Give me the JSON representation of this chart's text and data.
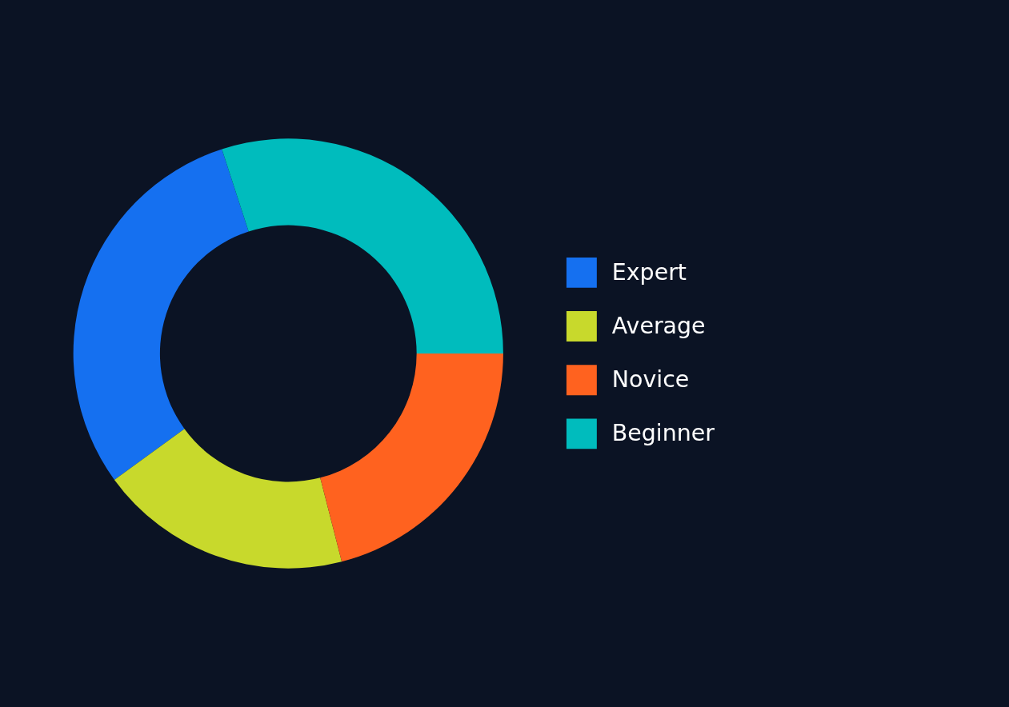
{
  "chart_data": {
    "type": "donut",
    "categories": [
      "Expert",
      "Average",
      "Novice",
      "Beginner"
    ],
    "values": [
      30,
      19,
      21,
      30
    ],
    "colors": [
      "#1570f0",
      "#c8d92c",
      "#ff621f",
      "#00bcbd"
    ],
    "legend": "right"
  }
}
